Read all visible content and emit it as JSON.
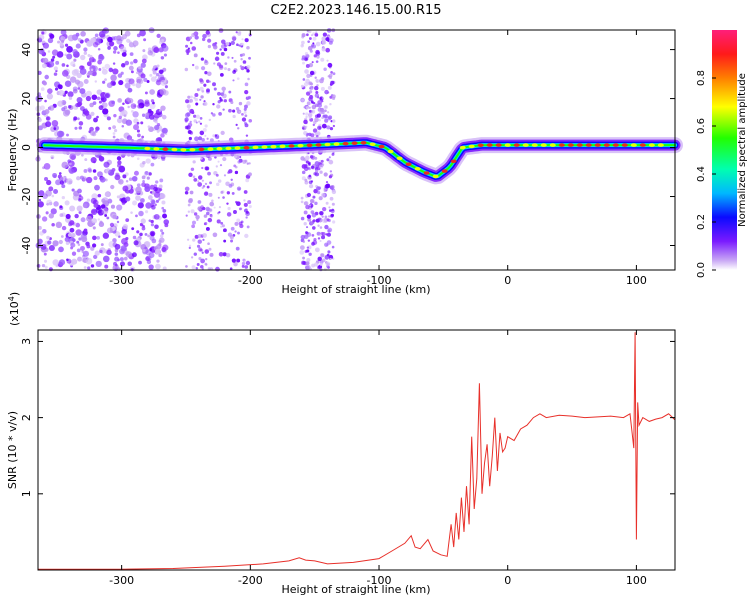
{
  "figure": {
    "title": "C2E2.2023.146.15.00.R15"
  },
  "chart_data": [
    {
      "type": "heatmap",
      "xlabel": "Height of straight line (km)",
      "ylabel": "Frequency (Hz)",
      "xlim": [
        -365,
        130
      ],
      "ylim": [
        -50,
        48
      ],
      "xticks": [
        -300,
        -200,
        -100,
        0,
        100
      ],
      "yticks": [
        -40,
        -20,
        0,
        20,
        40
      ],
      "ridge_x": [
        -365,
        -300,
        -250,
        -200,
        -150,
        -110,
        -95,
        -80,
        -65,
        -55,
        -45,
        -35,
        -20,
        0,
        20,
        60,
        100,
        130
      ],
      "ridge_y": [
        1,
        0,
        -1,
        0,
        1,
        2,
        0,
        -6,
        -10,
        -12,
        -8,
        0,
        1,
        1,
        1,
        1,
        1,
        1
      ],
      "noise_bands_x": [
        [
          -365,
          -265
        ],
        [
          -250,
          -200
        ],
        [
          -160,
          -135
        ]
      ],
      "colorbar": {
        "label": "Normalized spectral amplitude",
        "range": [
          0.0,
          1.0
        ],
        "ticks": [
          "0.0",
          "0.2",
          "0.4",
          "0.6",
          "0.8"
        ],
        "colormap": "rainbow"
      },
      "grid": false
    },
    {
      "type": "line",
      "xlabel": "Height of straight line (km)",
      "ylabel": "SNR (10 * v/v)",
      "scale_note": "(x10",
      "scale_exp": "4",
      "scale_close": ")",
      "xlim": [
        -365,
        130
      ],
      "ylim": [
        0,
        3.15
      ],
      "xticks": [
        -300,
        -200,
        -100,
        0,
        100
      ],
      "yticks": [
        1,
        2,
        3
      ],
      "series": [
        {
          "color": "#e8302a",
          "x": [
            -365,
            -300,
            -260,
            -220,
            -190,
            -170,
            -162,
            -157,
            -150,
            -140,
            -120,
            -100,
            -90,
            -80,
            -75,
            -72,
            -68,
            -62,
            -58,
            -52,
            -47,
            -44,
            -42,
            -40,
            -38,
            -36,
            -34,
            -32,
            -30,
            -28,
            -26,
            -24,
            -22,
            -20,
            -18,
            -16,
            -14,
            -12,
            -10,
            -8,
            -6,
            -4,
            -2,
            0,
            5,
            10,
            15,
            20,
            25,
            30,
            40,
            50,
            60,
            70,
            80,
            90,
            95,
            98,
            99,
            100,
            101,
            102,
            105,
            110,
            115,
            120,
            125,
            130
          ],
          "y": [
            0.01,
            0.01,
            0.02,
            0.05,
            0.08,
            0.12,
            0.16,
            0.13,
            0.12,
            0.08,
            0.1,
            0.15,
            0.25,
            0.35,
            0.45,
            0.3,
            0.28,
            0.4,
            0.25,
            0.2,
            0.18,
            0.6,
            0.3,
            0.75,
            0.4,
            0.95,
            0.5,
            1.1,
            0.6,
            1.75,
            0.8,
            1.2,
            2.45,
            1.0,
            1.4,
            1.65,
            1.1,
            1.5,
            2.0,
            1.3,
            1.8,
            1.55,
            1.6,
            1.75,
            1.7,
            1.85,
            1.9,
            2.0,
            2.05,
            2.0,
            2.03,
            2.02,
            2.0,
            2.01,
            2.02,
            2.0,
            2.05,
            1.6,
            3.12,
            0.4,
            2.2,
            1.9,
            2.0,
            1.95,
            1.98,
            2.0,
            2.05,
            1.97
          ]
        }
      ],
      "grid": false
    }
  ]
}
